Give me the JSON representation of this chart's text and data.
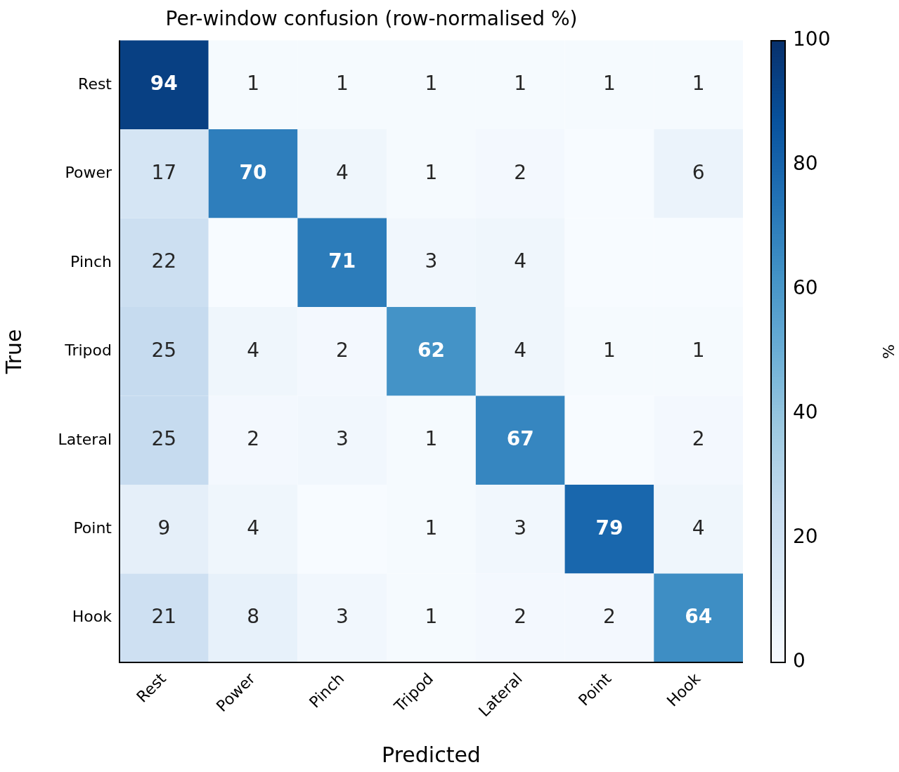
{
  "chart_data": {
    "type": "heatmap",
    "title": "Per-window confusion (row-normalised %)",
    "xlabel": "Predicted",
    "ylabel": "True",
    "clabel": "%",
    "categories": [
      "Rest",
      "Power",
      "Pinch",
      "Tripod",
      "Lateral",
      "Point",
      "Hook"
    ],
    "y_categories": [
      "Rest",
      "Power",
      "Pinch",
      "Tripod",
      "Lateral",
      "Point",
      "Hook"
    ],
    "cells": [
      [
        94,
        1,
        1,
        1,
        1,
        1,
        1
      ],
      [
        17,
        70,
        4,
        1,
        2,
        0,
        6
      ],
      [
        22,
        0,
        71,
        3,
        4,
        0,
        0
      ],
      [
        25,
        4,
        2,
        62,
        4,
        1,
        1
      ],
      [
        25,
        2,
        3,
        1,
        67,
        0,
        2
      ],
      [
        9,
        4,
        0,
        1,
        3,
        79,
        4
      ],
      [
        21,
        8,
        3,
        1,
        2,
        2,
        64
      ]
    ],
    "cell_labels": [
      [
        "94",
        "1",
        "1",
        "1",
        "1",
        "1",
        "1"
      ],
      [
        "17",
        "70",
        "4",
        "1",
        "2",
        null,
        "6"
      ],
      [
        "22",
        null,
        "71",
        "3",
        "4",
        null,
        null
      ],
      [
        "25",
        "4",
        "2",
        "62",
        "4",
        "1",
        "1"
      ],
      [
        "25",
        "2",
        "3",
        "1",
        "67",
        null,
        "2"
      ],
      [
        "9",
        "4",
        null,
        "1",
        "3",
        "79",
        "4"
      ],
      [
        "21",
        "8",
        "3",
        "1",
        "2",
        "2",
        "64"
      ]
    ],
    "clim": [
      0,
      100
    ],
    "cticks": [
      0,
      20,
      40,
      60,
      80,
      100
    ]
  }
}
